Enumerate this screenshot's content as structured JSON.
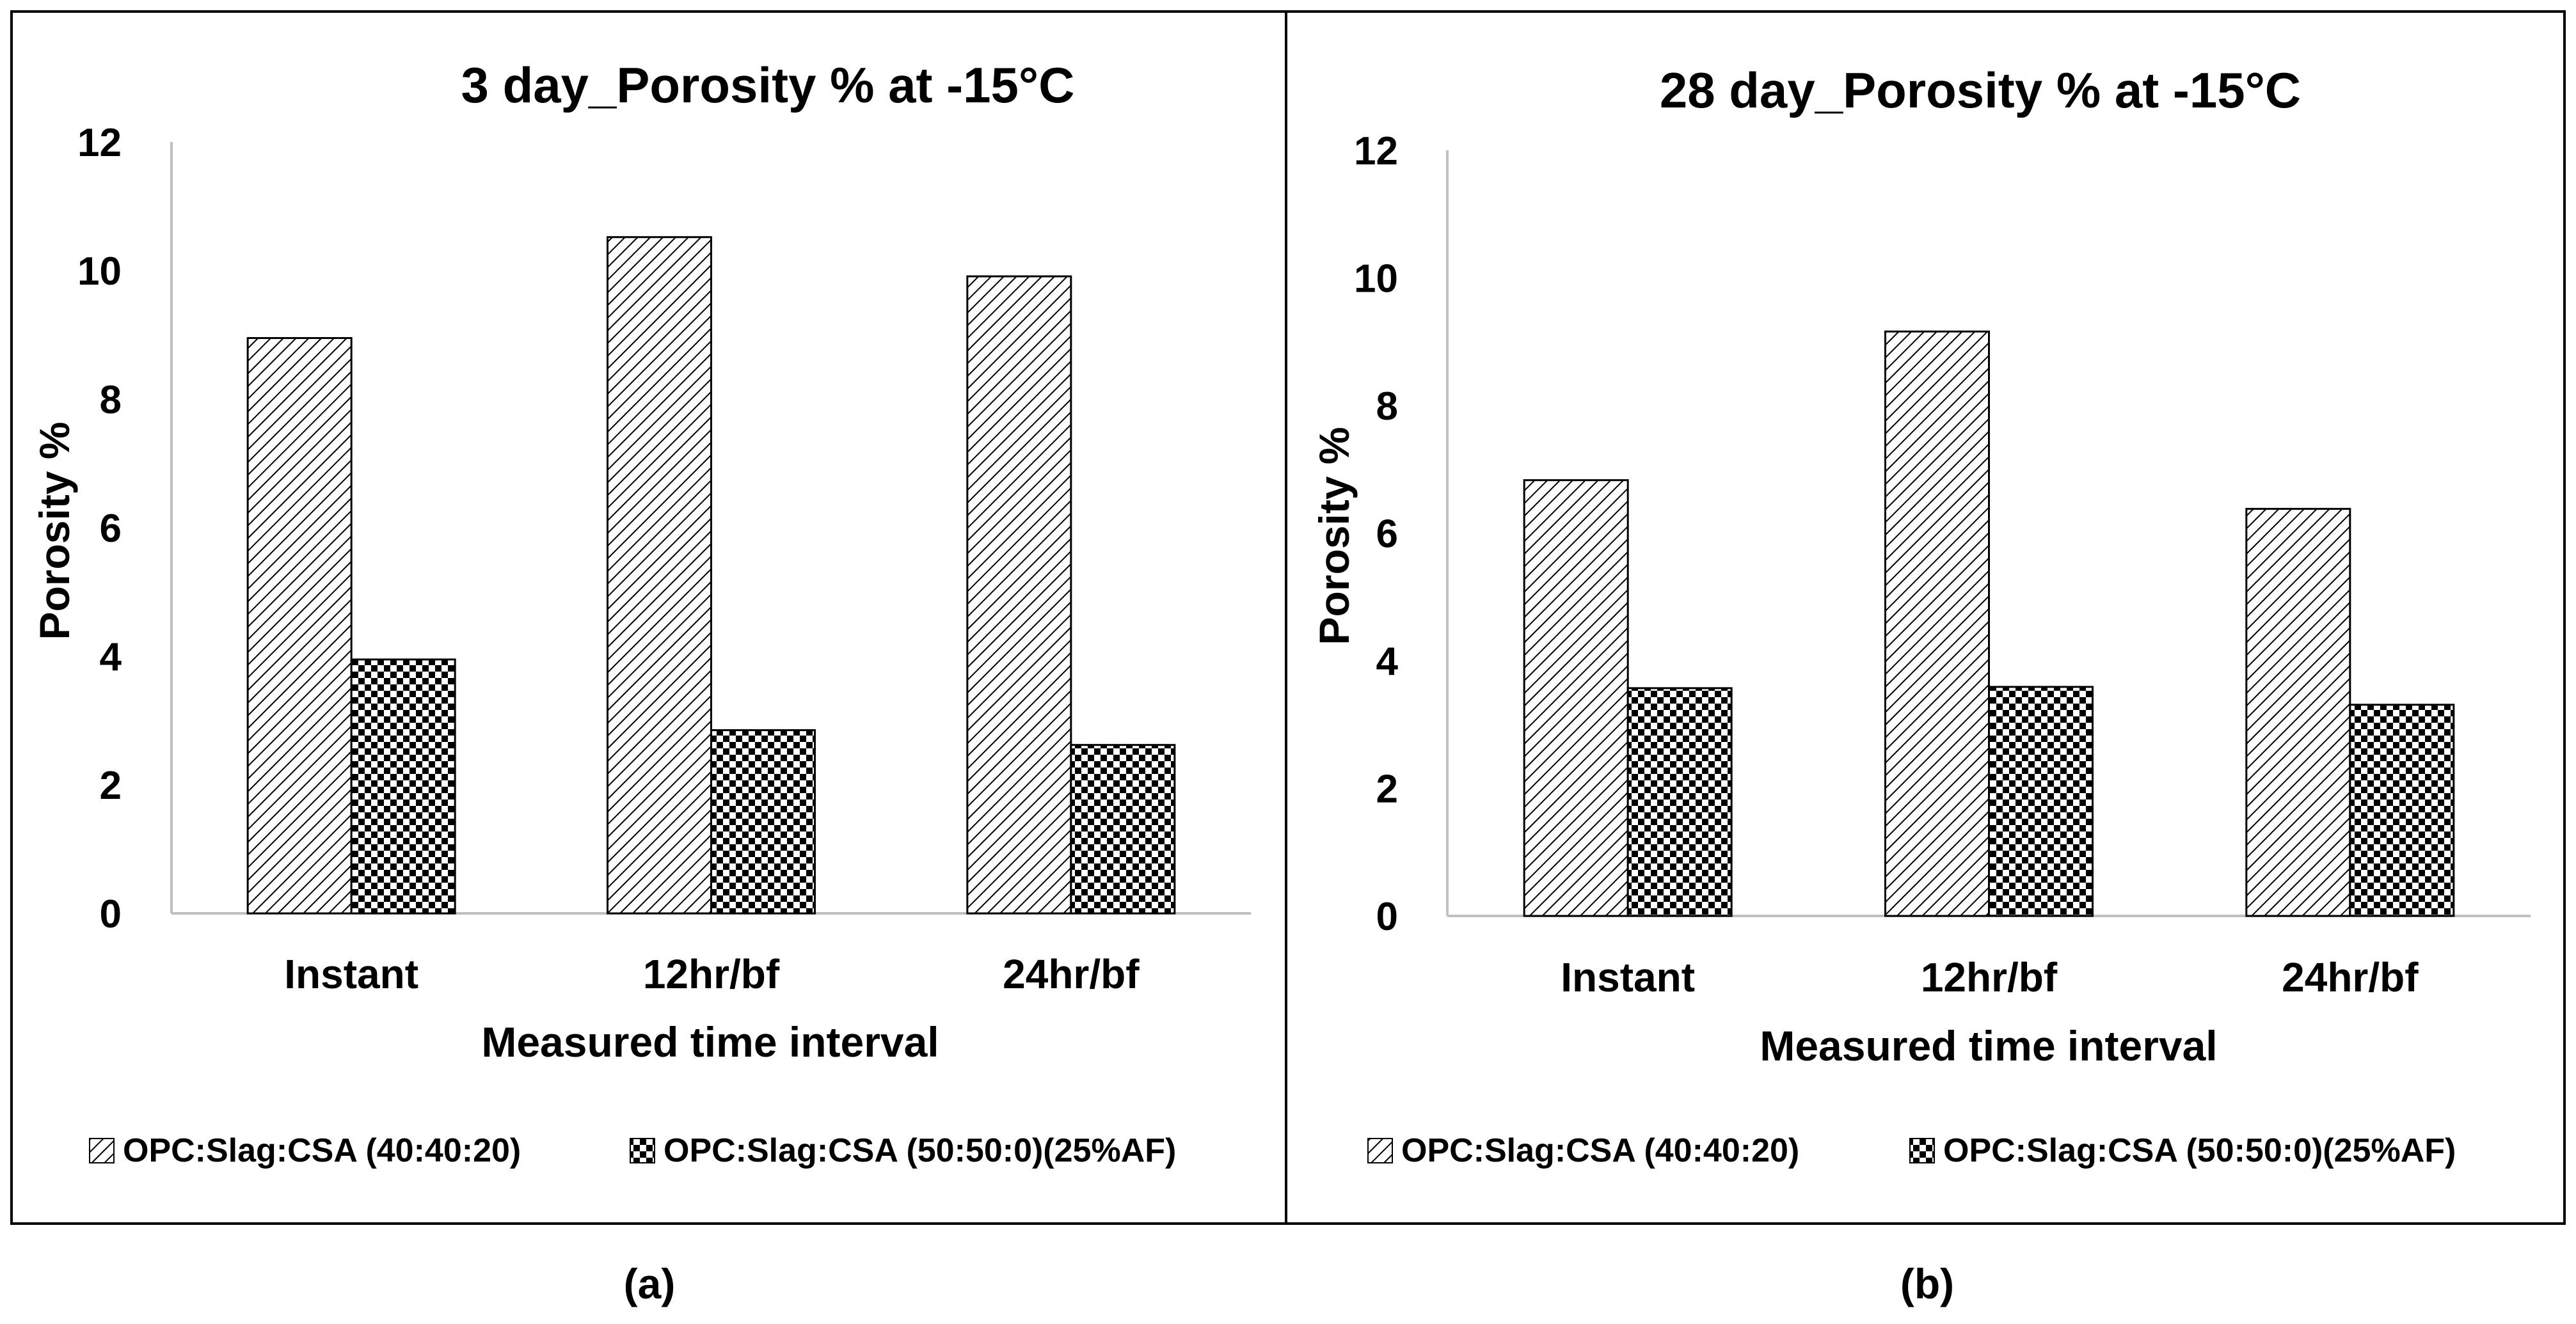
{
  "colors": {
    "stroke": "#000000",
    "axis": "#bfbfbf",
    "frame": "#000000",
    "background": "#ffffff"
  },
  "patterns": {
    "series_0": "diagonal-hatch",
    "series_1": "checkerboard"
  },
  "chart_data": [
    {
      "type": "bar",
      "panel_label": "(a)",
      "title": "3 day_Porosity % at -15°C",
      "xlabel": "Measured time interval",
      "ylabel": "Porosity %",
      "ylim": [
        0,
        12
      ],
      "yticks": [
        0,
        2,
        4,
        6,
        8,
        10,
        12
      ],
      "categories": [
        "Instant",
        "12hr/bf",
        "24hr/bf"
      ],
      "series": [
        {
          "name": "OPC:Slag:CSA (40:40:20)",
          "values": [
            8.95,
            10.52,
            9.91
          ]
        },
        {
          "name": "OPC:Slag:CSA (50:50:0)(25%AF)",
          "values": [
            3.95,
            2.85,
            2.62
          ]
        }
      ],
      "legend": "bottom"
    },
    {
      "type": "bar",
      "panel_label": "(b)",
      "title": "28 day_Porosity % at -15°C",
      "xlabel": "Measured time interval",
      "ylabel": "Porosity %",
      "ylim": [
        0,
        12
      ],
      "yticks": [
        0,
        2,
        4,
        6,
        8,
        10,
        12
      ],
      "categories": [
        "Instant",
        "12hr/bf",
        "24hr/bf"
      ],
      "series": [
        {
          "name": "OPC:Slag:CSA (40:40:20)",
          "values": [
            6.83,
            9.16,
            6.38
          ]
        },
        {
          "name": "OPC:Slag:CSA (50:50:0)(25%AF)",
          "values": [
            3.57,
            3.59,
            3.31
          ]
        }
      ],
      "legend": "bottom"
    }
  ]
}
